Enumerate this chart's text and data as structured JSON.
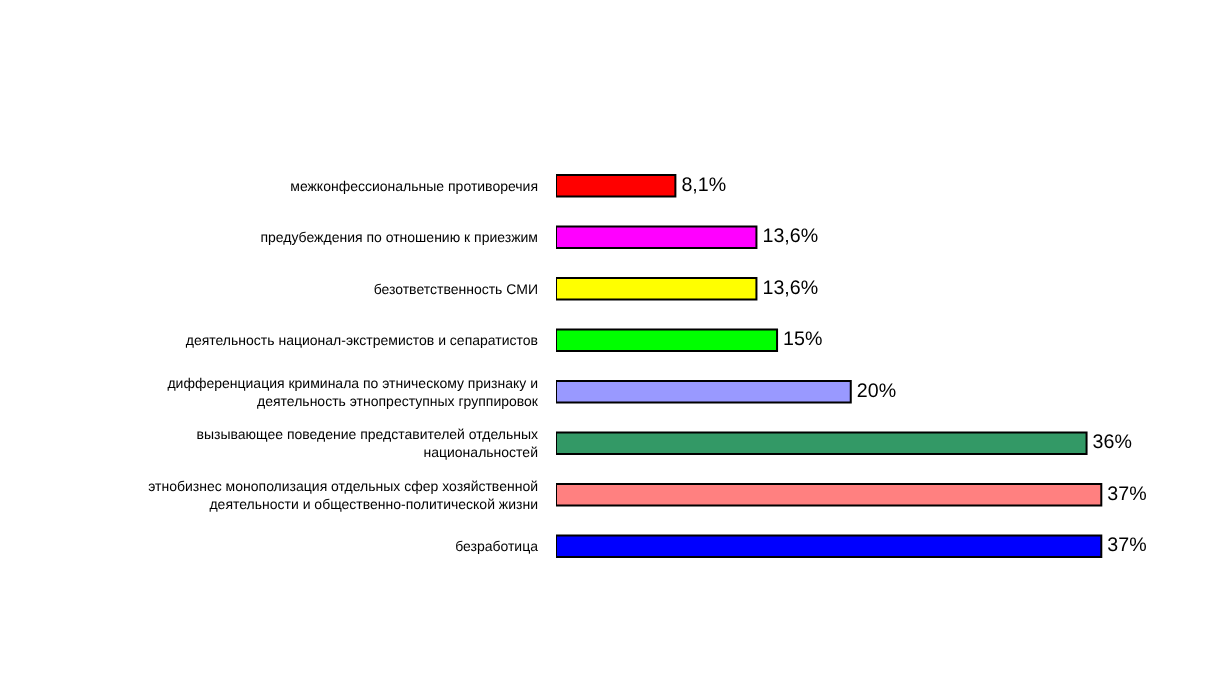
{
  "chart_data": {
    "type": "bar",
    "orientation": "horizontal",
    "categories": [
      "межконфессиональные противоречия",
      "предубеждения по отношению к приезжим",
      "безответственность СМИ",
      "деятельность национал-экстремистов и сепаратистов",
      "дифференциация криминала по этническому признаку и деятельность этнопреступных группировок",
      "вызывающее поведение представителей отдельных национальностей",
      "этнобизнес монополизация отдельных сфер хозяйственной деятельности и общественно-политической жизни",
      "безработица"
    ],
    "values": [
      8.1,
      13.6,
      13.6,
      15,
      20,
      36,
      37,
      37
    ],
    "colors": [
      "#ff0000",
      "#ff00ff",
      "#ffff00",
      "#00ff00",
      "#9999ff",
      "#339966",
      "#ff8080",
      "#0000ff"
    ],
    "value_labels": [
      "8,1%",
      "13,6%",
      "13,6%",
      "15%",
      "20%",
      "36%",
      "37%",
      "37%"
    ]
  }
}
